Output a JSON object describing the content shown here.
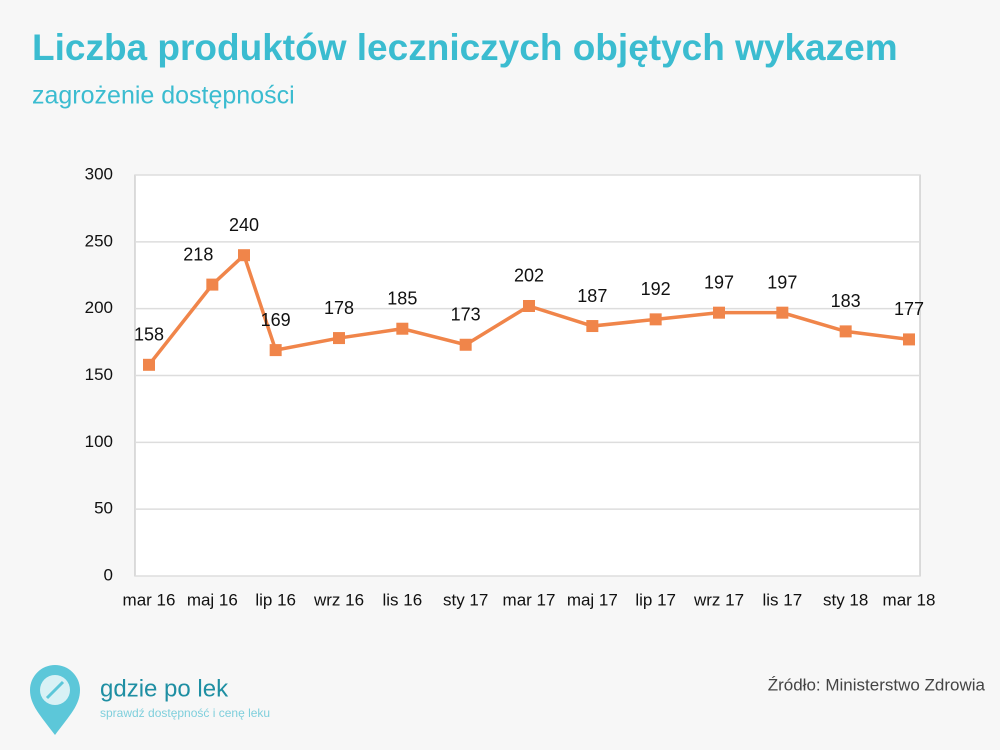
{
  "chart_data": {
    "type": "line",
    "title": "Liczba produktów leczniczych objętych wykazem",
    "subtitle": "zagrożenie dostępności",
    "categories": [
      "mar 16",
      "maj 16",
      null,
      "lip 16",
      "wrz 16",
      "lis 16",
      "sty 17",
      "mar 17",
      "maj 17",
      "lip 17",
      "wrz 17",
      "lis 17",
      "sty 18",
      "mar 18"
    ],
    "values": [
      158,
      218,
      240,
      169,
      178,
      185,
      173,
      202,
      187,
      192,
      197,
      197,
      183,
      177
    ],
    "color": "#f0854a",
    "ylim": [
      0,
      300
    ],
    "yticks": [
      0,
      50,
      100,
      150,
      200,
      250,
      300
    ],
    "grid": true
  },
  "source": "Źródło: Ministerstwo Zdrowia",
  "logo": {
    "name": "gdzie po lek",
    "tagline": "sprawdź dostępność i cenę leku"
  }
}
